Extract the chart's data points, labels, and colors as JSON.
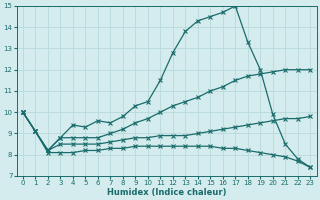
{
  "xlabel": "Humidex (Indice chaleur)",
  "xlim": [
    -0.5,
    23.5
  ],
  "ylim": [
    7,
    15
  ],
  "yticks": [
    7,
    8,
    9,
    10,
    11,
    12,
    13,
    14,
    15
  ],
  "xticks": [
    0,
    1,
    2,
    3,
    4,
    5,
    6,
    7,
    8,
    9,
    10,
    11,
    12,
    13,
    14,
    15,
    16,
    17,
    18,
    19,
    20,
    21,
    22,
    23
  ],
  "background_color": "#d4eced",
  "grid_color": "#b8d8da",
  "line_color": "#1a6b6b",
  "line1_x": [
    0,
    1,
    2,
    3,
    4,
    5,
    6,
    7,
    8,
    9,
    10,
    11,
    12,
    13,
    14,
    15,
    16,
    17,
    18,
    19,
    20,
    21,
    22,
    23
  ],
  "line1_y": [
    10.0,
    9.1,
    8.2,
    8.8,
    9.4,
    9.3,
    9.6,
    9.5,
    9.8,
    10.3,
    10.5,
    11.5,
    12.8,
    13.8,
    14.3,
    14.5,
    14.7,
    15.0,
    13.3,
    12.0,
    9.9,
    8.5,
    7.8,
    7.4
  ],
  "line2_x": [
    0,
    1,
    2,
    3,
    4,
    5,
    6,
    7,
    8,
    9,
    10,
    11,
    12,
    13,
    14,
    15,
    16,
    17,
    18,
    19,
    20,
    21,
    22,
    23
  ],
  "line2_y": [
    10.0,
    9.1,
    8.2,
    8.8,
    8.8,
    8.8,
    8.8,
    9.0,
    9.2,
    9.5,
    9.7,
    10.0,
    10.3,
    10.5,
    10.7,
    11.0,
    11.2,
    11.5,
    11.7,
    11.8,
    11.9,
    12.0,
    12.0,
    12.0
  ],
  "line3_x": [
    0,
    1,
    2,
    3,
    4,
    5,
    6,
    7,
    8,
    9,
    10,
    11,
    12,
    13,
    14,
    15,
    16,
    17,
    18,
    19,
    20,
    21,
    22,
    23
  ],
  "line3_y": [
    10.0,
    9.1,
    8.2,
    8.5,
    8.5,
    8.5,
    8.5,
    8.6,
    8.7,
    8.8,
    8.8,
    8.9,
    8.9,
    8.9,
    9.0,
    9.1,
    9.2,
    9.3,
    9.4,
    9.5,
    9.6,
    9.7,
    9.7,
    9.8
  ],
  "line4_x": [
    0,
    1,
    2,
    3,
    4,
    5,
    6,
    7,
    8,
    9,
    10,
    11,
    12,
    13,
    14,
    15,
    16,
    17,
    18,
    19,
    20,
    21,
    22,
    23
  ],
  "line4_y": [
    10.0,
    9.1,
    8.1,
    8.1,
    8.1,
    8.2,
    8.2,
    8.3,
    8.3,
    8.4,
    8.4,
    8.4,
    8.4,
    8.4,
    8.4,
    8.4,
    8.3,
    8.3,
    8.2,
    8.1,
    8.0,
    7.9,
    7.7,
    7.4
  ],
  "tick_fontsize": 5.0,
  "xlabel_fontsize": 6.0
}
